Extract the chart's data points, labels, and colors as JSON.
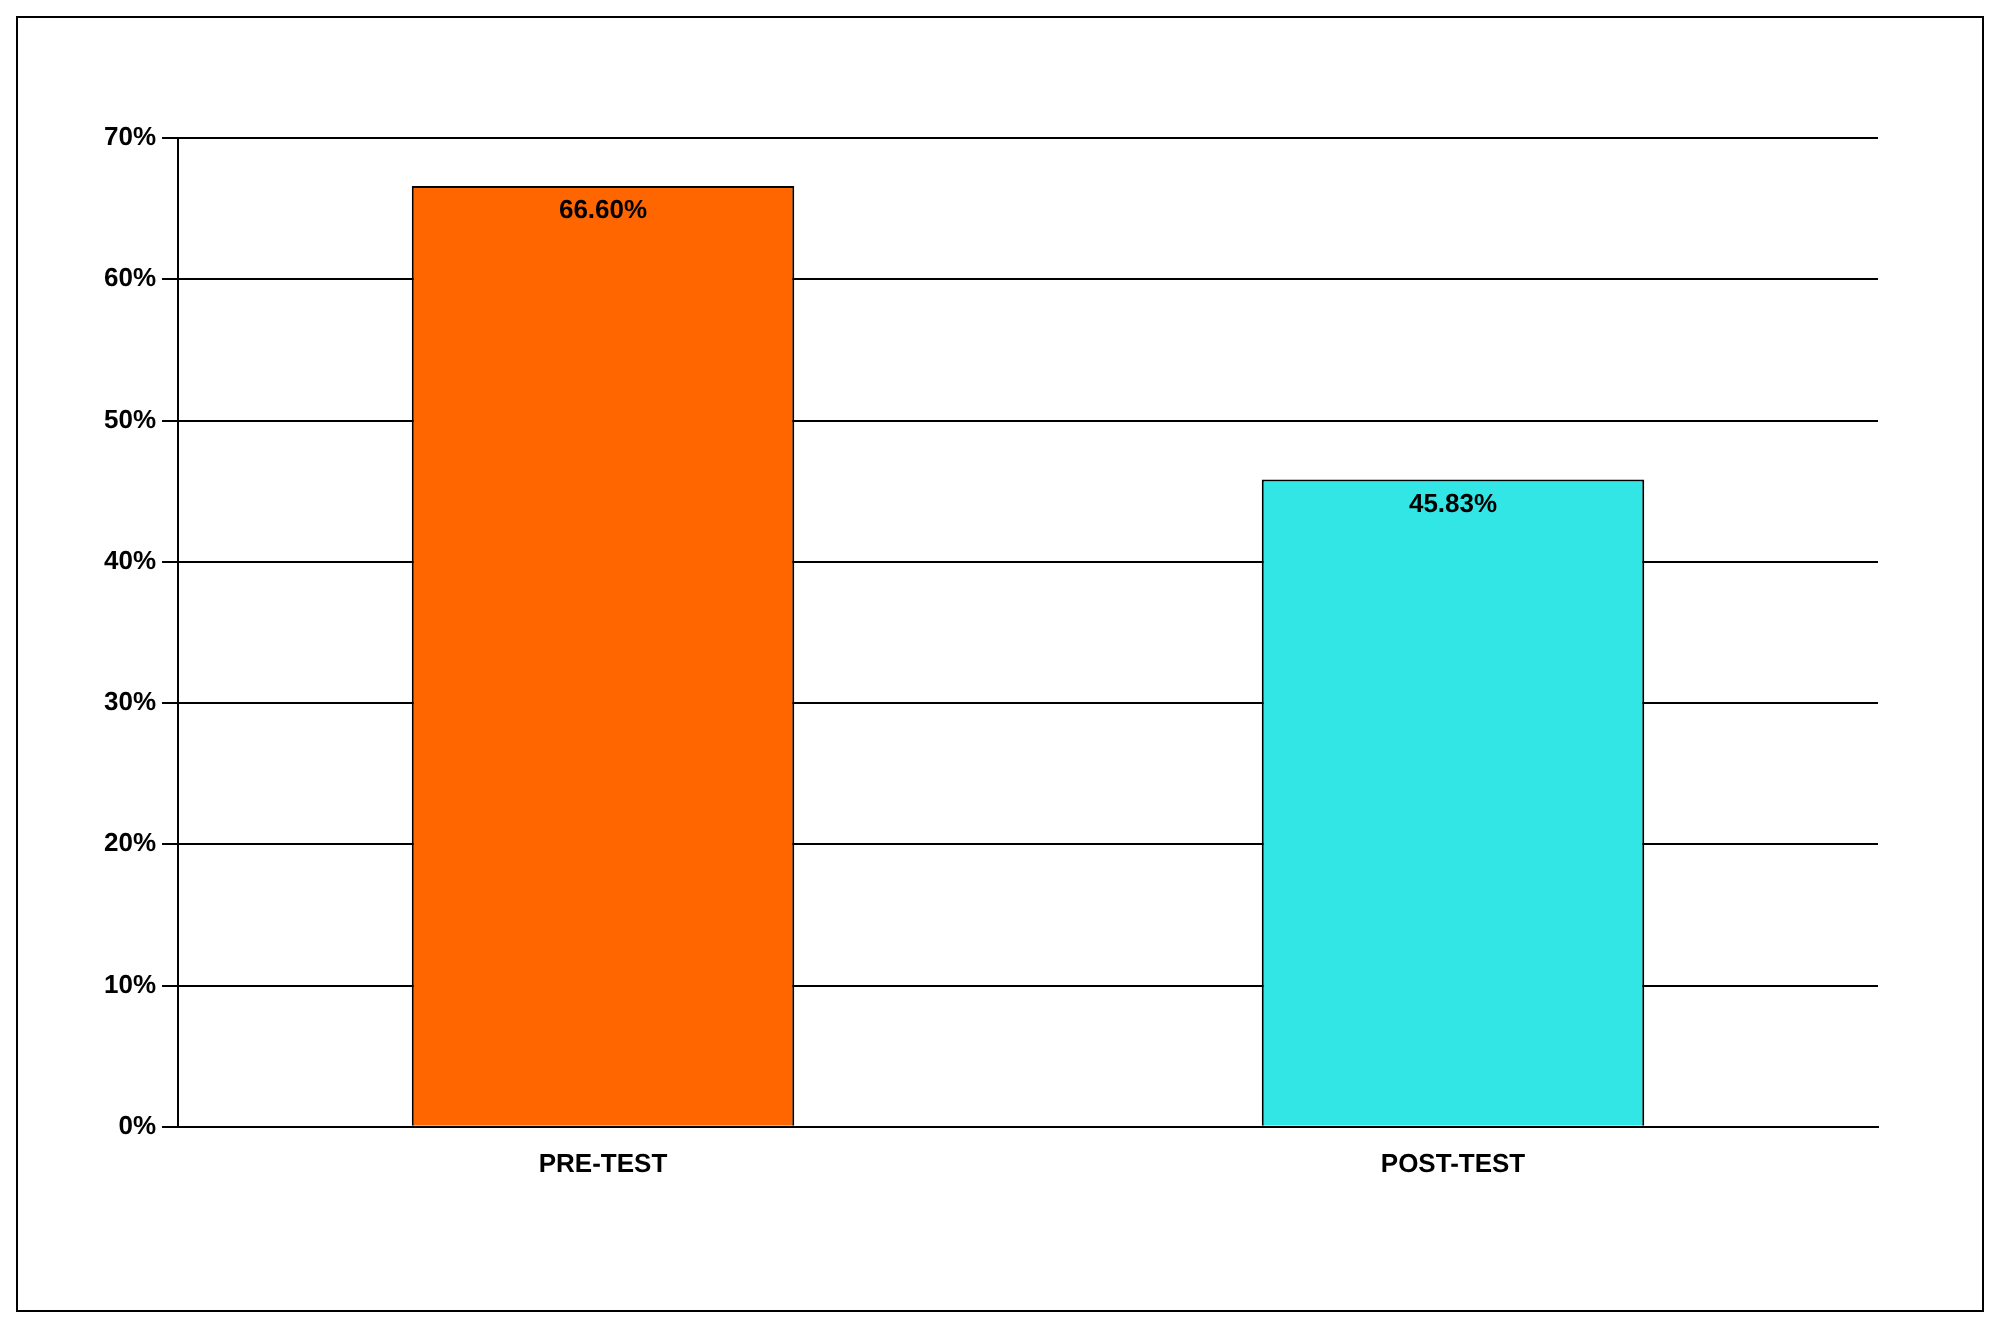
{
  "chart_data": {
    "type": "bar",
    "categories": [
      "PRE-TEST",
      "POST-TEST"
    ],
    "values": [
      66.6,
      45.83
    ],
    "colors": [
      "#ff6600",
      "#33e6e6"
    ],
    "value_labels": [
      "66.60%",
      "45.83%"
    ],
    "ylim": [
      0,
      70
    ],
    "yticks": [
      {
        "value": 0,
        "label": "0%"
      },
      {
        "value": 10,
        "label": "10%"
      },
      {
        "value": 20,
        "label": "20%"
      },
      {
        "value": 30,
        "label": "30%"
      },
      {
        "value": 40,
        "label": "40%"
      },
      {
        "value": 50,
        "label": "50%"
      },
      {
        "value": 60,
        "label": "60%"
      },
      {
        "value": 70,
        "label": "70%"
      }
    ],
    "grid": "y",
    "legend": false
  }
}
